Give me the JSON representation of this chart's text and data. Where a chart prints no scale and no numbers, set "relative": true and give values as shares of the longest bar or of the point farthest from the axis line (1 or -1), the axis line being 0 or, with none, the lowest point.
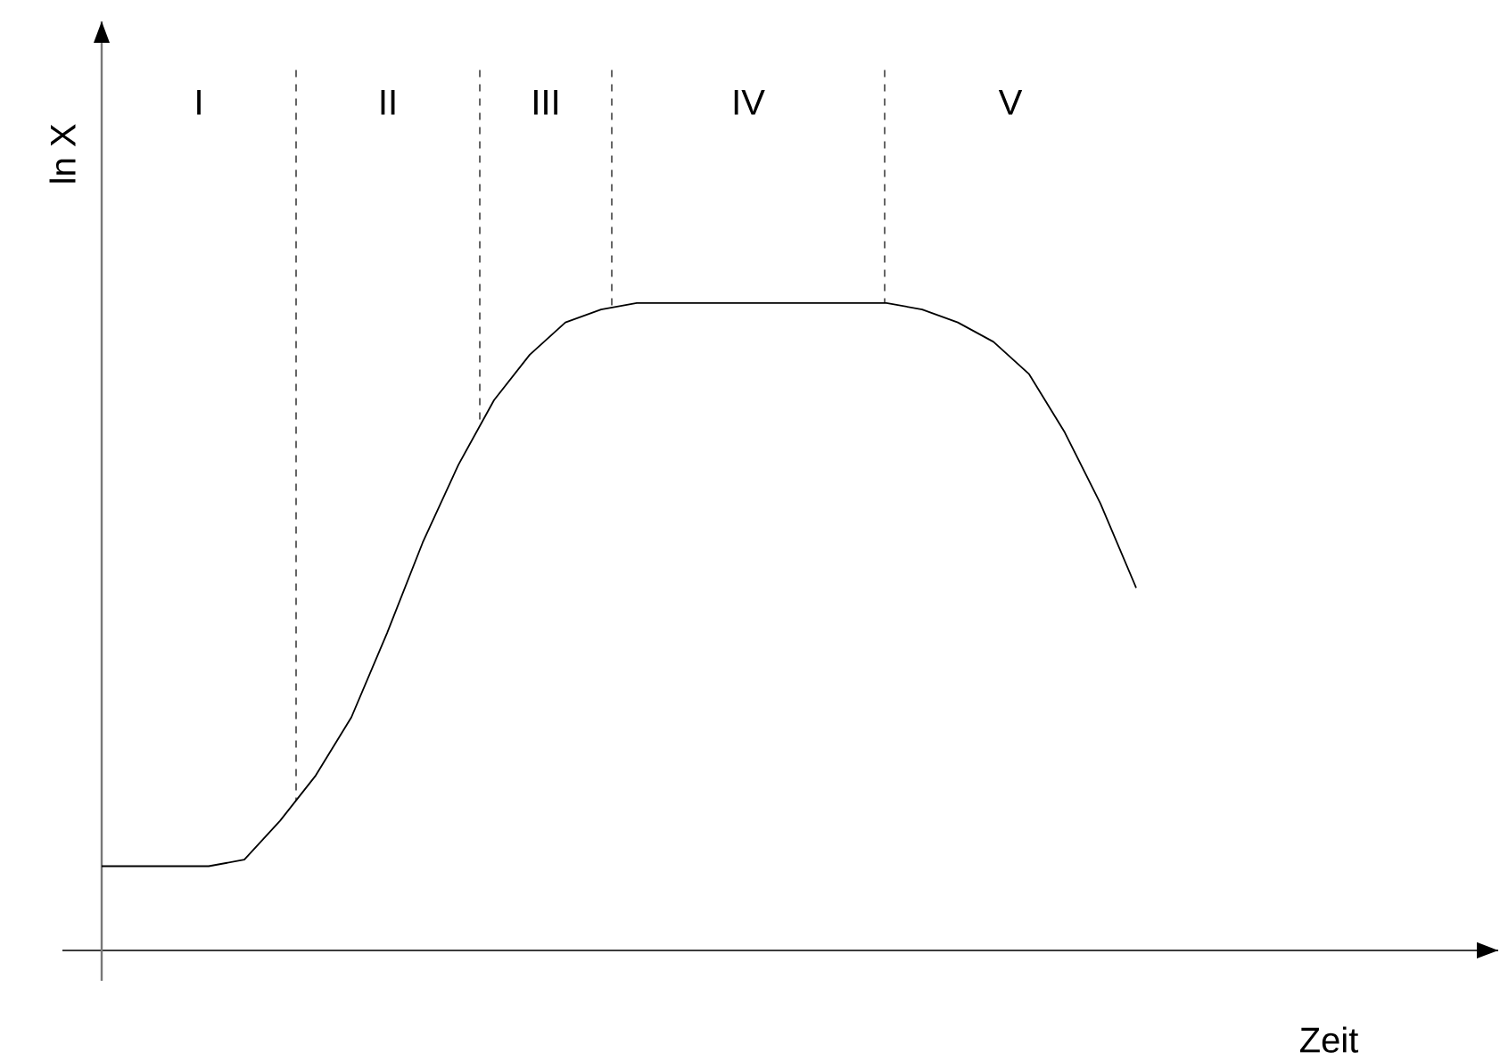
{
  "chart_data": {
    "type": "line",
    "relative": true,
    "xlabel": "Zeit",
    "ylabel": "ln X",
    "color": "#000000",
    "categories": [
      null,
      null,
      null,
      null,
      null,
      null,
      null,
      null,
      null,
      null,
      null,
      null,
      null,
      null,
      null,
      null,
      null,
      null,
      null,
      null,
      null,
      null,
      null,
      null,
      null,
      null,
      null,
      null,
      null,
      null
    ],
    "values": [
      0.13,
      0.13,
      0.13,
      0.13,
      0.14,
      0.2,
      0.27,
      0.36,
      0.49,
      0.63,
      0.75,
      0.85,
      0.92,
      0.97,
      0.99,
      1,
      1,
      1,
      1,
      1,
      1,
      1,
      1,
      0.99,
      0.97,
      0.94,
      0.89,
      0.8,
      0.69,
      0.56
    ],
    "annotations": [
      "I",
      "II",
      "III",
      "IV",
      "V"
    ]
  }
}
